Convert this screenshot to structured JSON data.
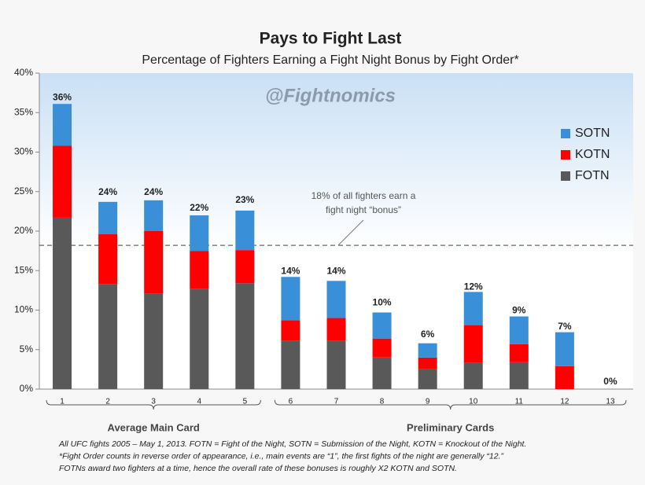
{
  "chart_data": {
    "type": "stacked_bar",
    "title": "Pays to Fight Last",
    "subtitle": "Percentage of Fighters Earning a Fight Night Bonus by Fight Order*",
    "watermark": "@Fightnomics",
    "categories": [
      "1",
      "2",
      "3",
      "4",
      "5",
      "6",
      "7",
      "8",
      "9",
      "10",
      "11",
      "12",
      "13"
    ],
    "series": [
      {
        "name": "FOTN",
        "color": "#595959",
        "values": [
          21.7,
          13.3,
          12.1,
          12.7,
          13.4,
          6.1,
          6.1,
          4.0,
          2.5,
          3.3,
          3.4,
          0,
          0
        ]
      },
      {
        "name": "KOTN",
        "color": "#ff0000",
        "values": [
          9.1,
          6.3,
          7.9,
          4.8,
          4.2,
          2.6,
          2.9,
          2.4,
          1.5,
          4.8,
          2.3,
          2.9,
          0
        ]
      },
      {
        "name": "SOTN",
        "color": "#3a8fd9",
        "values": [
          5.3,
          4.1,
          3.9,
          4.5,
          5.0,
          5.5,
          4.7,
          3.3,
          1.8,
          4.2,
          3.5,
          4.3,
          0
        ]
      }
    ],
    "totals": {
      "values": [
        36,
        24,
        24,
        22,
        23,
        14,
        14,
        10,
        6,
        12,
        9,
        7,
        0
      ],
      "value_labels": [
        "36%",
        "24%",
        "24%",
        "22%",
        "23%",
        "14%",
        "14%",
        "10%",
        "6%",
        "12%",
        "9%",
        "7%",
        "0%"
      ]
    },
    "ylim": [
      0,
      40
    ],
    "yticks": [
      {
        "value": 0,
        "label": "0%"
      },
      {
        "value": 5,
        "label": "5%"
      },
      {
        "value": 10,
        "label": "10%"
      },
      {
        "value": 15,
        "label": "15%"
      },
      {
        "value": 20,
        "label": "20%"
      },
      {
        "value": 25,
        "label": "25%"
      },
      {
        "value": 30,
        "label": "30%"
      },
      {
        "value": 35,
        "label": "35%"
      },
      {
        "value": 40,
        "label": "40%"
      }
    ],
    "reference_line": {
      "value": 18.2,
      "label": [
        "18% of all fighters earn a",
        "fight night “bonus”"
      ]
    },
    "groups": [
      {
        "label": "Average Main Card",
        "span": [
          0,
          4
        ]
      },
      {
        "label": "Preliminary Cards",
        "span": [
          5,
          12
        ]
      }
    ],
    "legend": "right",
    "footnotes": [
      "All UFC fights 2005 – May 1, 2013. FOTN = Fight of the Night, SOTN = Submission of the Night, KOTN = Knockout of the Night.",
      "*Fight Order counts in reverse order of appearance, i.e., main events are “1”, the first fights of the night are generally “12.”",
      "FOTNs award two fighters at a time, hence the overall rate of these bonuses is roughly X2 KOTN and SOTN."
    ]
  }
}
